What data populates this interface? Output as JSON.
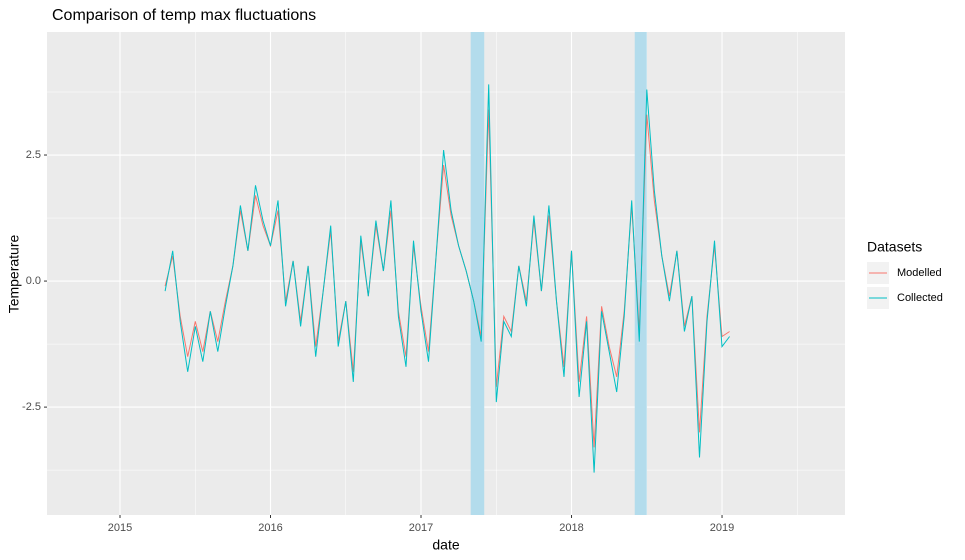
{
  "chart_data": {
    "type": "line",
    "title": "Comparison of temp max fluctuations",
    "x_label": "date",
    "y_label": "Temperature",
    "legend_title": "Datasets",
    "legend_position": "right",
    "xlim": [
      2014.515,
      2019.817
    ],
    "xticks": [
      2015,
      2016,
      2017,
      2018,
      2019
    ],
    "ylim": [
      -4.64,
      4.94
    ],
    "yticks": [
      {
        "value": -2.5,
        "label": "-2.5"
      },
      {
        "value": 0,
        "label": "0.0"
      },
      {
        "value": 2.5,
        "label": "2.5"
      }
    ],
    "grid": true,
    "highlights": [
      [
        2017.33,
        2017.42
      ],
      [
        2018.42,
        2018.5
      ]
    ],
    "highlight_color": "#b3dcec",
    "x": [
      2015.3,
      2015.35,
      2015.4,
      2015.45,
      2015.5,
      2015.55,
      2015.6,
      2015.65,
      2015.7,
      2015.75,
      2015.8,
      2015.85,
      2015.9,
      2015.95,
      2016,
      2016.05,
      2016.1,
      2016.15,
      2016.2,
      2016.25,
      2016.3,
      2016.35,
      2016.4,
      2016.45,
      2016.5,
      2016.55,
      2016.6,
      2016.65,
      2016.7,
      2016.75,
      2016.8,
      2016.85,
      2016.9,
      2016.95,
      2017,
      2017.05,
      2017.1,
      2017.15,
      2017.2,
      2017.25,
      2017.3,
      2017.35,
      2017.4,
      2017.45,
      2017.5,
      2017.55,
      2017.6,
      2017.65,
      2017.7,
      2017.75,
      2017.8,
      2017.85,
      2017.9,
      2017.95,
      2018,
      2018.05,
      2018.1,
      2018.15,
      2018.2,
      2018.25,
      2018.3,
      2018.35,
      2018.4,
      2018.45,
      2018.5,
      2018.55,
      2018.6,
      2018.65,
      2018.7,
      2018.75,
      2018.8,
      2018.85,
      2018.9,
      2018.95,
      2019,
      2019.05
    ],
    "series": [
      {
        "name": "Modelled",
        "color": "#f8766d",
        "values": [
          -0.1,
          0.5,
          -0.7,
          -1.5,
          -0.8,
          -1.4,
          -0.6,
          -1.2,
          -0.4,
          0.3,
          1.4,
          0.6,
          1.7,
          1.1,
          0.7,
          1.4,
          -0.4,
          0.4,
          -0.8,
          0.3,
          -1.3,
          -0.2,
          1.0,
          -1.2,
          -0.4,
          -1.8,
          0.8,
          -0.3,
          1.1,
          0.2,
          1.4,
          -0.6,
          -1.5,
          0.7,
          -0.5,
          -1.4,
          0.5,
          2.3,
          1.3,
          0.7,
          0.2,
          -0.4,
          -1.1,
          3.4,
          -2.1,
          -0.7,
          -1.0,
          0.3,
          -0.4,
          1.2,
          -0.2,
          1.3,
          -0.4,
          -1.7,
          0.6,
          -2.0,
          -0.7,
          -3.3,
          -0.5,
          -1.3,
          -1.9,
          -0.6,
          1.5,
          -1.0,
          3.3,
          1.6,
          0.5,
          -0.3,
          0.6,
          -0.9,
          -0.3,
          -3.0,
          -0.7,
          0.7,
          -1.1,
          -1.0
        ]
      },
      {
        "name": "Collected",
        "color": "#00bfc4",
        "values": [
          -0.2,
          0.6,
          -0.8,
          -1.8,
          -0.9,
          -1.6,
          -0.6,
          -1.4,
          -0.5,
          0.3,
          1.5,
          0.6,
          1.9,
          1.2,
          0.7,
          1.6,
          -0.5,
          0.4,
          -0.9,
          0.3,
          -1.5,
          -0.2,
          1.1,
          -1.3,
          -0.4,
          -2.0,
          0.9,
          -0.3,
          1.2,
          0.2,
          1.6,
          -0.7,
          -1.7,
          0.8,
          -0.6,
          -1.6,
          0.5,
          2.6,
          1.4,
          0.7,
          0.2,
          -0.4,
          -1.2,
          3.9,
          -2.4,
          -0.8,
          -1.1,
          0.3,
          -0.5,
          1.3,
          -0.2,
          1.5,
          -0.4,
          -1.9,
          0.6,
          -2.3,
          -0.8,
          -3.8,
          -0.6,
          -1.4,
          -2.2,
          -0.7,
          1.6,
          -1.2,
          3.8,
          1.8,
          0.5,
          -0.4,
          0.6,
          -1.0,
          -0.3,
          -3.5,
          -0.8,
          0.8,
          -1.3,
          -1.1
        ]
      }
    ]
  }
}
